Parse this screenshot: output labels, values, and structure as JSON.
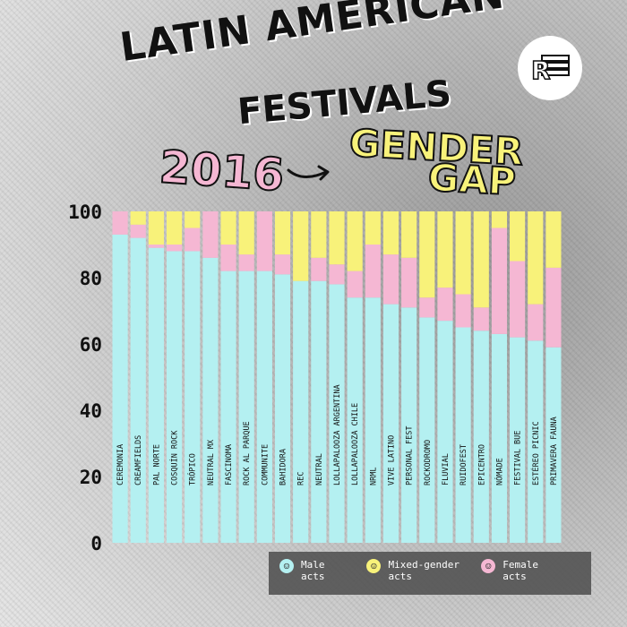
{
  "headline": {
    "line1": "LATIN AMERICAN",
    "line2": "FESTIVALS",
    "year": "2016",
    "subtitle_line1": "GENDER",
    "subtitle_line2": "GAP",
    "logo_text": "R"
  },
  "colors": {
    "male": "#b4f0f1",
    "mixed": "#f8f27a",
    "female": "#f5b7d3",
    "legend_bg": "#505050"
  },
  "chart_data": {
    "type": "bar",
    "stacked": true,
    "title": "LATIN AMERICAN FESTIVALS 2016 GENDER GAP",
    "ylim": [
      0,
      100
    ],
    "yticks": [
      "0",
      "20",
      "40",
      "60",
      "80",
      "100"
    ],
    "legend_position": "bottom-right",
    "categories": [
      "CEREMONIA",
      "CREAMFIELDS",
      "PAL NORTE",
      "COSQUÍN ROCK",
      "TRÓPICO",
      "NEUTRAL MX",
      "FASCINOMA",
      "ROCK AL PARQUE",
      "COMMUNITE",
      "BAHIDORA",
      "REC",
      "NEUTRAL",
      "LOLLAPALOOZA ARGENTINA",
      "LOLLAPALOOZA CHILE",
      "NRML",
      "VIVE LATINO",
      "PERSONAL FEST",
      "ROCKODROMO",
      "FLUVIAL",
      "RUIDOFEST",
      "EPICENTRO",
      "NÓMADE",
      "FESTIVAL BUE",
      "ESTÉREO PICNIC",
      "PRIMAVERA FAUNA"
    ],
    "series": [
      {
        "name": "Male acts",
        "values": [
          93,
          92,
          89,
          88,
          88,
          86,
          82,
          82,
          82,
          81,
          79,
          79,
          78,
          74,
          74,
          72,
          71,
          68,
          67,
          65,
          64,
          63,
          62,
          61,
          59
        ]
      },
      {
        "name": "Female acts",
        "values": [
          7,
          4,
          1,
          2,
          7,
          14,
          8,
          5,
          18,
          6,
          0,
          7,
          6,
          8,
          16,
          15,
          15,
          6,
          10,
          10,
          7,
          32,
          23,
          11,
          24
        ]
      },
      {
        "name": "Mixed-gender acts",
        "values": [
          0,
          4,
          10,
          10,
          5,
          0,
          10,
          13,
          0,
          13,
          21,
          14,
          16,
          18,
          10,
          13,
          14,
          26,
          23,
          25,
          29,
          5,
          15,
          28,
          17
        ]
      }
    ]
  },
  "legend": [
    {
      "key": "male",
      "icon": "male-smiley-icon",
      "label": "Male acts"
    },
    {
      "key": "mixed",
      "icon": "mixed-smiley-icon",
      "label": "Mixed-gender acts"
    },
    {
      "key": "female",
      "icon": "female-smiley-icon",
      "label": "Female acts"
    }
  ]
}
